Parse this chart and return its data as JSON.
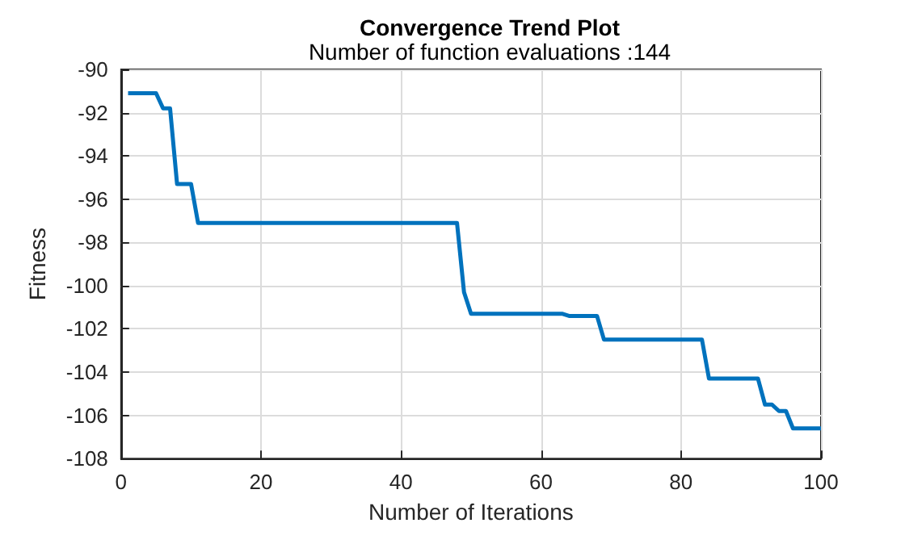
{
  "chart_data": {
    "type": "line",
    "title": "Convergence Trend Plot",
    "subtitle": "Number of function evaluations :144",
    "xlabel": "Number of Iterations",
    "ylabel": "Fitness",
    "xlim": [
      0,
      100
    ],
    "xticks": [
      0,
      20,
      40,
      60,
      80,
      100
    ],
    "ylim": [
      -108,
      -90
    ],
    "yticks": [
      -108,
      -106,
      -104,
      -102,
      -100,
      -98,
      -96,
      -94,
      -92,
      -90
    ],
    "grid": true,
    "marker": "none",
    "line_style": "solid",
    "series": [
      {
        "color": "#0072bd",
        "x": [
          1,
          5,
          6,
          7,
          8,
          9,
          10,
          11,
          48,
          49,
          50,
          63,
          64,
          68,
          69,
          83,
          84,
          91,
          92,
          93,
          94,
          95,
          96,
          100
        ],
        "values": [
          -91.1,
          -91.1,
          -91.8,
          -91.8,
          -95.3,
          -95.3,
          -95.3,
          -97.1,
          -97.1,
          -100.3,
          -101.3,
          -101.3,
          -101.4,
          -101.4,
          -102.5,
          -102.5,
          -104.3,
          -104.3,
          -105.5,
          -105.5,
          -105.8,
          -105.8,
          -106.6,
          -106.6
        ]
      }
    ]
  }
}
